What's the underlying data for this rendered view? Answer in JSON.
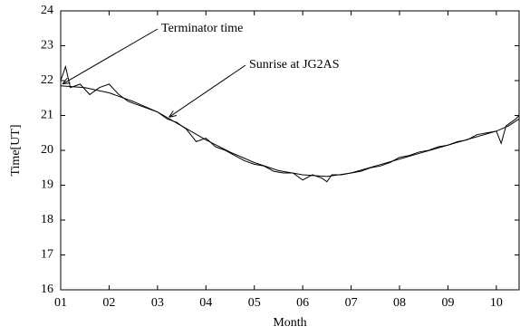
{
  "chart_data": {
    "type": "line",
    "xlabel": "Month",
    "ylabel": "Time[UT]",
    "xlim": [
      1,
      10.47
    ],
    "ylim": [
      16,
      24
    ],
    "xticks": [
      {
        "value": 1,
        "label": "01"
      },
      {
        "value": 2,
        "label": "02"
      },
      {
        "value": 3,
        "label": "03"
      },
      {
        "value": 4,
        "label": "04"
      },
      {
        "value": 5,
        "label": "05"
      },
      {
        "value": 6,
        "label": "06"
      },
      {
        "value": 7,
        "label": "07"
      },
      {
        "value": 8,
        "label": "08"
      },
      {
        "value": 9,
        "label": "09"
      },
      {
        "value": 10,
        "label": "10"
      }
    ],
    "yticks": [
      16,
      17,
      18,
      19,
      20,
      21,
      22,
      23,
      24
    ],
    "series": [
      {
        "name": "Terminator time",
        "color": "#000000",
        "x": [
          1,
          1.5,
          2,
          2.5,
          3,
          3.5,
          4,
          4.5,
          5,
          5.5,
          6,
          6.5,
          7,
          7.5,
          8,
          8.5,
          9,
          9.5,
          10,
          10.25,
          10.47
        ],
        "values": [
          21.85,
          21.8,
          21.65,
          21.4,
          21.1,
          20.7,
          20.3,
          19.95,
          19.65,
          19.42,
          19.3,
          19.25,
          19.35,
          19.55,
          19.75,
          19.95,
          20.15,
          20.35,
          20.55,
          20.7,
          20.9
        ]
      },
      {
        "name": "Sunrise at JG2AS",
        "color": "#000000",
        "x": [
          1.0,
          1.1,
          1.2,
          1.4,
          1.6,
          1.8,
          2.0,
          2.2,
          2.4,
          2.6,
          2.8,
          3.0,
          3.2,
          3.4,
          3.6,
          3.8,
          4.0,
          4.2,
          4.4,
          4.6,
          4.8,
          5.0,
          5.2,
          5.4,
          5.6,
          5.8,
          6.0,
          6.2,
          6.4,
          6.5,
          6.6,
          6.8,
          7.0,
          7.2,
          7.4,
          7.6,
          7.8,
          8.0,
          8.2,
          8.4,
          8.6,
          8.8,
          9.0,
          9.2,
          9.4,
          9.6,
          9.8,
          10.0,
          10.1,
          10.2,
          10.3,
          10.4,
          10.47
        ],
        "values": [
          22.0,
          22.4,
          21.8,
          21.9,
          21.6,
          21.8,
          21.9,
          21.6,
          21.4,
          21.3,
          21.2,
          21.1,
          20.9,
          20.8,
          20.6,
          20.25,
          20.35,
          20.1,
          20.0,
          19.85,
          19.7,
          19.6,
          19.55,
          19.4,
          19.35,
          19.35,
          19.15,
          19.3,
          19.2,
          19.1,
          19.3,
          19.3,
          19.35,
          19.4,
          19.5,
          19.55,
          19.65,
          19.8,
          19.85,
          19.95,
          20.0,
          20.1,
          20.15,
          20.25,
          20.3,
          20.45,
          20.5,
          20.55,
          20.2,
          20.7,
          20.8,
          20.9,
          21.0
        ]
      }
    ]
  }
}
